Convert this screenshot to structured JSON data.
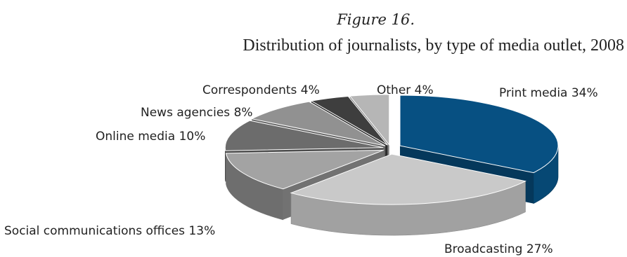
{
  "figure_label": "Figure 16.",
  "chart_data": {
    "type": "pie",
    "title": "Distribution of journalists, by type of media outlet, 2008",
    "three_d": true,
    "exploded": true,
    "slices": [
      {
        "label": "Print media 34%",
        "name": "Print media",
        "value": 34,
        "color": "#075082"
      },
      {
        "label": "Broadcasting 27%",
        "name": "Broadcasting",
        "value": 27,
        "color": "#c9c9c9"
      },
      {
        "label": "Social communications offices 13%",
        "name": "Social communications offices",
        "value": 13,
        "color": "#a3a3a3"
      },
      {
        "label": "Online media 10%",
        "name": "Online media",
        "value": 10,
        "color": "#6c6c6c"
      },
      {
        "label": "News agencies 8%",
        "name": "News agencies",
        "value": 8,
        "color": "#919191"
      },
      {
        "label": "Correspondents 4%",
        "name": "Correspondents",
        "value": 4,
        "color": "#3e3e3e"
      },
      {
        "label": "Other 4%",
        "name": "Other",
        "value": 4,
        "color": "#b6b6b6"
      }
    ]
  }
}
